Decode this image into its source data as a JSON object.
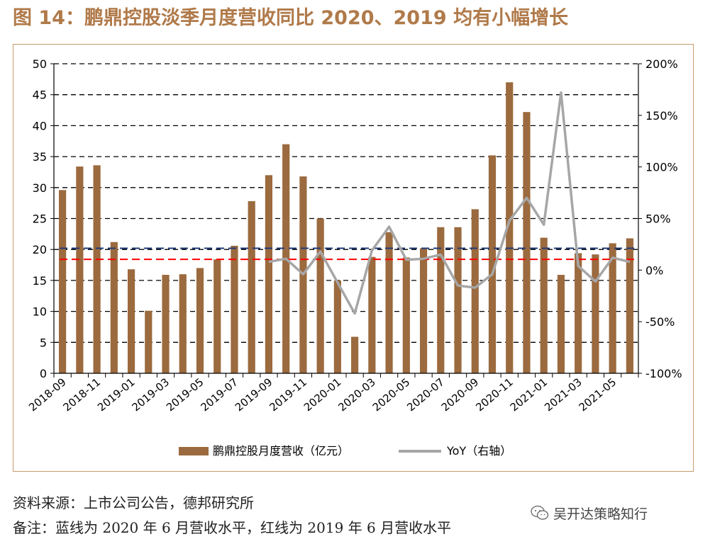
{
  "title": "图 14：鹏鼎控股淡季月度营收同比 2020、2019 均有小幅增长",
  "footer": {
    "source": "资料来源：上市公司公告，德邦研究所",
    "note": "备注：蓝线为 2020 年 6 月营收水平，红线为 2019 年 6 月营收水平"
  },
  "watermark": {
    "text": "吴开达策略知行",
    "icon": "wechat-icon"
  },
  "colors": {
    "bar": "#9b6a3e",
    "line": "#a6a6a6",
    "blue_ref": "#1f3b7a",
    "red_ref": "#ff0000",
    "frame": "#c79a6c",
    "title": "#b07a4a"
  },
  "chart_data": {
    "type": "bar",
    "categories": [
      "2018-09",
      "2018-10",
      "2018-11",
      "2018-12",
      "2019-01",
      "2019-02",
      "2019-03",
      "2019-04",
      "2019-05",
      "2019-06",
      "2019-07",
      "2019-08",
      "2019-09",
      "2019-10",
      "2019-11",
      "2019-12",
      "2020-01",
      "2020-02",
      "2020-03",
      "2020-04",
      "2020-05",
      "2020-06",
      "2020-07",
      "2020-08",
      "2020-09",
      "2020-10",
      "2020-11",
      "2020-12",
      "2021-01",
      "2021-02",
      "2021-03",
      "2021-04",
      "2021-05",
      "2021-06"
    ],
    "x_tick_labels": [
      "2018-09",
      "2018-11",
      "2019-01",
      "2019-03",
      "2019-05",
      "2019-07",
      "2019-09",
      "2019-11",
      "2020-01",
      "2020-03",
      "2020-05",
      "2020-07",
      "2020-09",
      "2020-11",
      "2021-01",
      "2021-03",
      "2021-05"
    ],
    "series": [
      {
        "name": "鹏鼎控股月度营收（亿元）",
        "type": "bar",
        "axis": "left",
        "values": [
          29.6,
          33.4,
          33.6,
          21.2,
          16.8,
          10.1,
          15.9,
          16.0,
          17.0,
          18.4,
          20.6,
          27.8,
          32.0,
          37.0,
          31.8,
          25.0,
          15.0,
          5.9,
          18.8,
          22.8,
          18.7,
          20.2,
          23.6,
          23.6,
          26.5,
          35.2,
          47.0,
          42.2,
          21.9,
          15.9,
          19.4,
          19.2,
          21.0,
          21.8
        ]
      },
      {
        "name": "YoY（右轴）",
        "type": "line",
        "axis": "right",
        "values": [
          null,
          null,
          null,
          null,
          null,
          null,
          null,
          null,
          null,
          null,
          null,
          null,
          8,
          11,
          -4,
          18,
          -12,
          -42,
          19,
          42,
          10,
          11,
          15,
          -15,
          -17,
          -4,
          48,
          70,
          44,
          172,
          4,
          -11,
          12,
          8
        ]
      }
    ],
    "reference_lines": [
      {
        "name": "2020年6月营收水平",
        "value": 20.2,
        "color": "blue"
      },
      {
        "name": "2019年6月营收水平",
        "value": 18.4,
        "color": "red"
      }
    ],
    "y_left": {
      "min": 0,
      "max": 50,
      "ticks": [
        "0",
        "5",
        "10",
        "15",
        "20",
        "25",
        "30",
        "35",
        "40",
        "45",
        "50"
      ]
    },
    "y_right": {
      "min": -100,
      "max": 200,
      "ticks": [
        "-100%",
        "-50%",
        "0%",
        "50%",
        "100%",
        "150%",
        "200%"
      ]
    },
    "grid": "horizontal dashed",
    "legend": "bottom-center"
  }
}
